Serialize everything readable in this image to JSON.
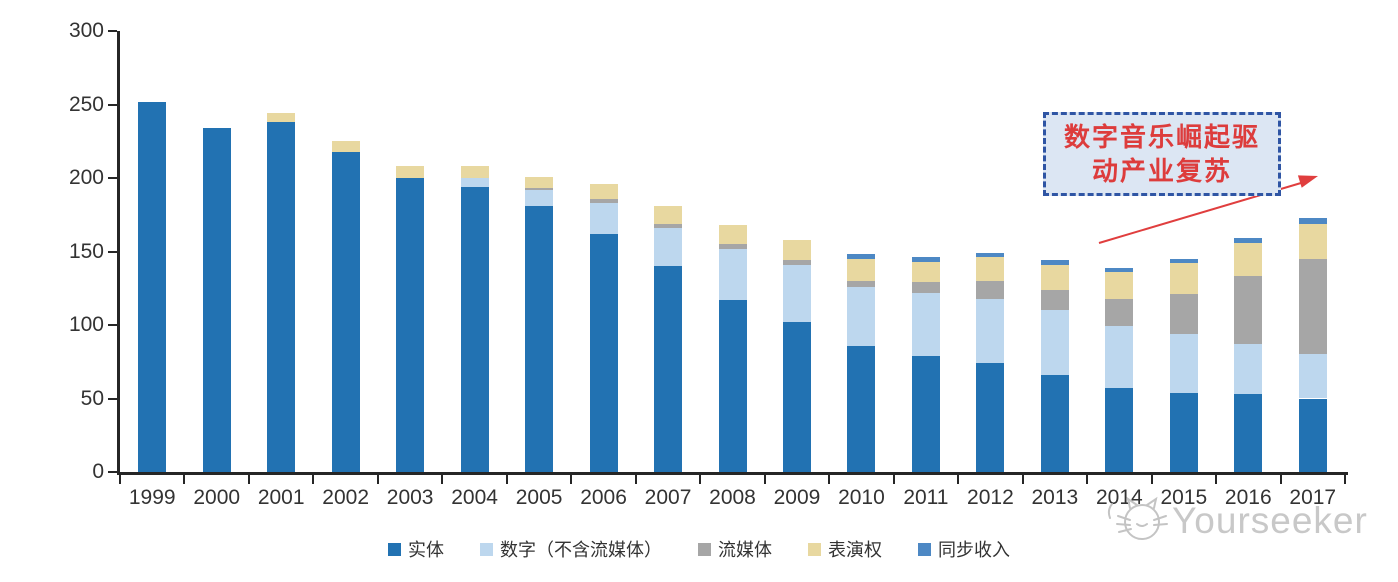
{
  "chart_data": {
    "type": "bar",
    "stacked": true,
    "title": "",
    "xlabel": "",
    "ylabel": "",
    "categories": [
      "1999",
      "2000",
      "2001",
      "2002",
      "2003",
      "2004",
      "2005",
      "2006",
      "2007",
      "2008",
      "2009",
      "2010",
      "2011",
      "2012",
      "2013",
      "2014",
      "2015",
      "2016",
      "2017"
    ],
    "series": [
      {
        "name": "实体",
        "color": "#2272b2",
        "values": [
          252,
          234,
          238,
          218,
          200,
          194,
          181,
          162,
          140,
          117,
          102,
          86,
          79,
          74,
          66,
          57,
          54,
          53,
          50
        ]
      },
      {
        "name": "数字（不含流媒体）",
        "color": "#bdd7ee",
        "values": [
          0,
          0,
          0,
          0,
          0,
          6,
          11,
          21,
          26,
          35,
          39,
          40,
          43,
          44,
          44,
          42,
          40,
          34,
          30
        ]
      },
      {
        "name": "流媒体",
        "color": "#a6a6a6",
        "values": [
          0,
          0,
          0,
          0,
          0,
          0,
          1,
          3,
          3,
          3,
          3,
          4,
          7,
          12,
          14,
          19,
          27,
          46,
          65
        ]
      },
      {
        "name": "表演权",
        "color": "#e8d8a0",
        "values": [
          0,
          0,
          6,
          7,
          8,
          8,
          8,
          10,
          12,
          13,
          14,
          15,
          14,
          16,
          17,
          18,
          21,
          23,
          24
        ]
      },
      {
        "name": "同步收入",
        "color": "#4d88c4",
        "values": [
          0,
          0,
          0,
          0,
          0,
          0,
          0,
          0,
          0,
          0,
          0,
          3,
          3,
          3,
          3,
          3,
          3,
          3,
          4
        ]
      }
    ],
    "ylim": [
      0,
      300
    ],
    "yticks": [
      "0",
      "50",
      "100",
      "150",
      "200",
      "250",
      "300"
    ],
    "grid": false,
    "legend_position": "bottom"
  },
  "annotation": {
    "text": "数字音乐崛起驱动产业复苏",
    "line1": "数字音乐崛起驱",
    "line2": "动产业复苏",
    "text_color": "#dd3c3c",
    "box_fill": "#dce6f3",
    "box_border": "#2f55a4",
    "arrow_color": "#e03e3e"
  },
  "watermark": {
    "text": "Yourseeker",
    "logo": "cat-face-icon",
    "color": "#c8c8c8"
  },
  "colors": {
    "axis": "#262626",
    "tick_label": "#333333",
    "background": "#ffffff"
  }
}
